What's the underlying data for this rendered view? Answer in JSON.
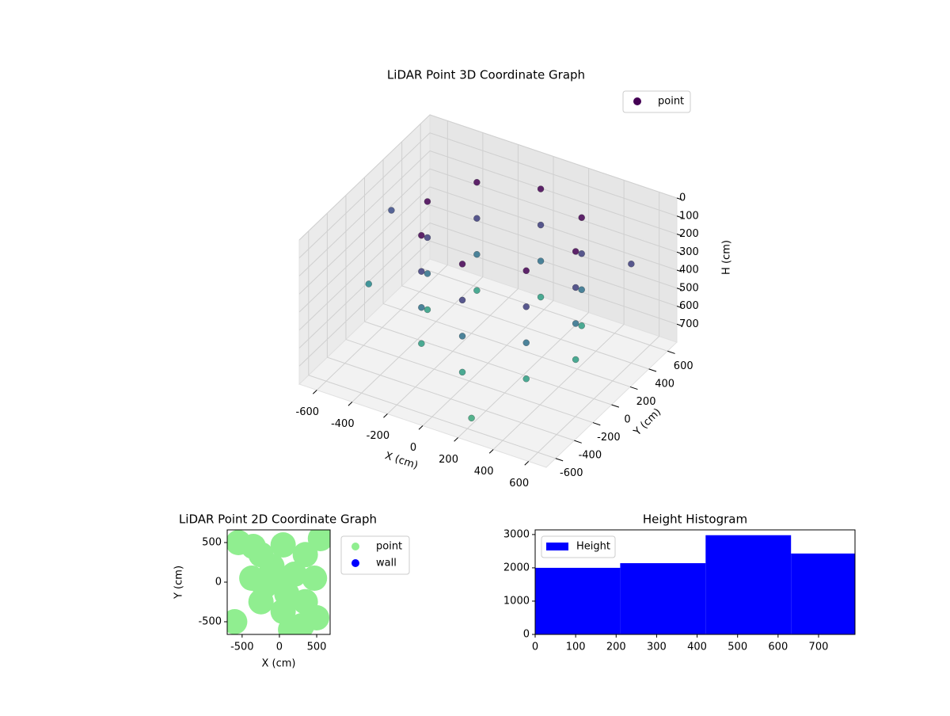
{
  "chart_data": [
    {
      "type": "scatter3d",
      "title": "LiDAR Point 3D Coordinate Graph",
      "xlabel": "X (cm)",
      "ylabel": "Y (cm)",
      "zlabel": "H (cm)",
      "xlim": [
        -700,
        700
      ],
      "ylim": [
        -700,
        700
      ],
      "zlim": [
        0,
        800
      ],
      "zinverted": true,
      "xticks": [
        -600,
        -400,
        -200,
        0,
        200,
        400,
        600
      ],
      "yticks": [
        -600,
        -400,
        -200,
        0,
        200,
        400,
        600
      ],
      "zticks": [
        0,
        100,
        200,
        300,
        400,
        500,
        600,
        700
      ],
      "colormap": "viridis",
      "legend": "upper right",
      "grid": true,
      "series": [
        {
          "name": "point",
          "color": "#440154",
          "x": [
            470,
            347,
            50,
            -247,
            -370,
            -247,
            50,
            347,
            470,
            347,
            50,
            -247,
            -370,
            -247,
            50,
            347,
            470,
            347,
            50,
            -247,
            -370,
            -247,
            50,
            347,
            470,
            347,
            50,
            -247,
            -370,
            -247,
            50,
            347,
            -680,
            -650,
            250,
            600
          ],
          "y": [
            50,
            347,
            470,
            347,
            50,
            -247,
            -370,
            -247,
            50,
            347,
            470,
            347,
            50,
            -247,
            -370,
            -247,
            50,
            347,
            470,
            347,
            50,
            -247,
            -370,
            -247,
            50,
            347,
            470,
            347,
            50,
            -247,
            -370,
            -247,
            250,
            -50,
            -650,
            400
          ],
          "z": [
            650,
            650,
            650,
            650,
            650,
            650,
            650,
            650,
            450,
            450,
            450,
            450,
            450,
            450,
            450,
            450,
            250,
            250,
            250,
            250,
            250,
            250,
            250,
            250,
            50,
            50,
            50,
            50,
            50,
            50,
            50,
            50,
            300,
            550,
            700,
            250
          ]
        }
      ]
    },
    {
      "type": "scatter",
      "title": "LiDAR Point 2D Coordinate Graph",
      "xlabel": "X (cm)",
      "ylabel": "Y (cm)",
      "xlim": [
        -700,
        680
      ],
      "ylim": [
        -660,
        660
      ],
      "xticks": [
        -500,
        0,
        500
      ],
      "yticks": [
        -500,
        0,
        500
      ],
      "legend": "outside right",
      "series": [
        {
          "name": "point",
          "color": "#90ee90",
          "x": [
            470,
            347,
            50,
            -247,
            -370,
            -247,
            50,
            347,
            200,
            -100,
            100,
            -200,
            0,
            500,
            -550,
            550,
            -600,
            300,
            -350,
            150
          ],
          "y": [
            50,
            347,
            470,
            347,
            50,
            -247,
            -370,
            -247,
            100,
            200,
            -150,
            -50,
            0,
            -450,
            500,
            550,
            -500,
            -550,
            450,
            -600
          ]
        },
        {
          "name": "wall",
          "color": "#0000ff",
          "x": [],
          "y": []
        }
      ]
    },
    {
      "type": "histogram",
      "title": "Height Histogram",
      "bins": [
        0,
        210,
        421,
        632,
        790
      ],
      "counts": [
        2000,
        2140,
        2980,
        2430
      ],
      "name": "Height",
      "color": "#0000ff",
      "xlim": [
        0,
        790
      ],
      "ylim": [
        0,
        3140
      ],
      "xticks": [
        0,
        100,
        200,
        300,
        400,
        500,
        600,
        700
      ],
      "yticks": [
        0,
        1000,
        2000,
        3000
      ],
      "legend": "upper left"
    }
  ]
}
